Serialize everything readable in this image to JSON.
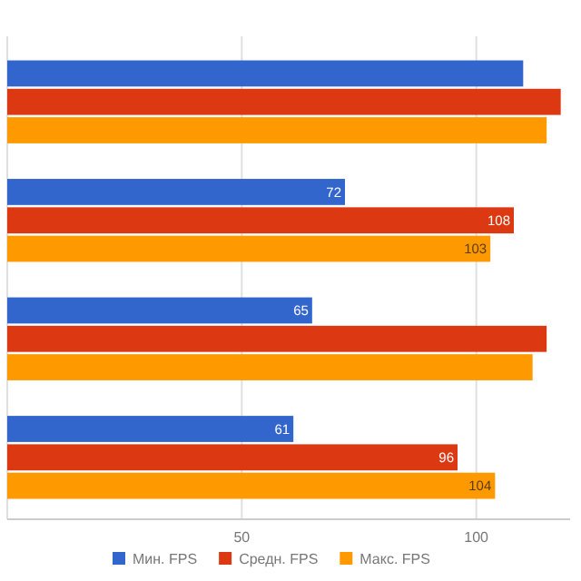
{
  "chart_data": {
    "type": "bar",
    "orientation": "horizontal",
    "categories": [
      null,
      null,
      null,
      null
    ],
    "series": [
      {
        "name": "Мин. FPS",
        "color": "#3366cc",
        "values": [
          110,
          72,
          65,
          61
        ],
        "value_labels": [
          null,
          "72",
          "65",
          "61"
        ]
      },
      {
        "name": "Средн. FPS",
        "color": "#dc3912",
        "values": [
          118,
          108,
          115,
          96
        ],
        "value_labels": [
          null,
          "108",
          null,
          "96"
        ]
      },
      {
        "name": "Макс. FPS",
        "color": "#ff9900",
        "values": [
          115,
          103,
          112,
          104
        ],
        "value_labels": [
          null,
          "103",
          null,
          "104"
        ]
      }
    ],
    "xlim": [
      0,
      120
    ],
    "xticks": [
      {
        "value": 0,
        "label": null
      },
      50,
      100
    ],
    "grid": "x",
    "legend": "bottom"
  }
}
